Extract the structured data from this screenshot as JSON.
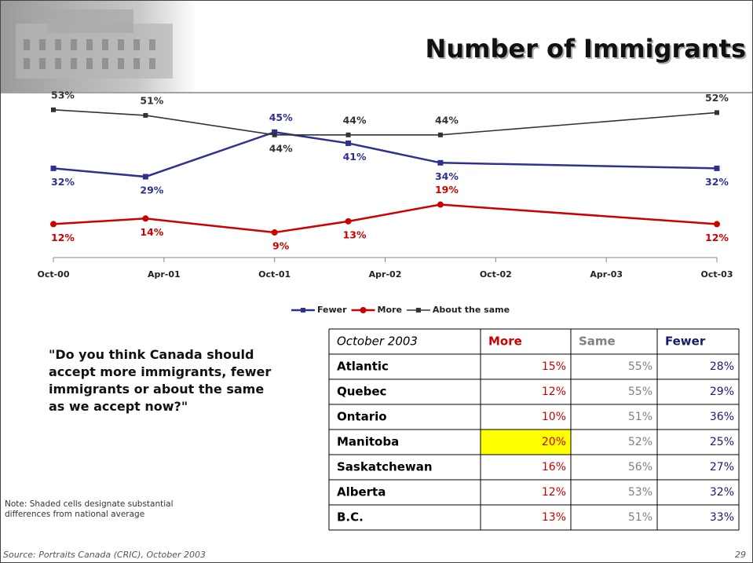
{
  "header": {
    "title": "Number of Immigrants"
  },
  "chart_data": {
    "type": "line",
    "x": [
      "2000-10",
      "2001-03",
      "2001-10",
      "2002-02",
      "2002-07",
      "2003-10"
    ],
    "xlim": [
      "2000-10",
      "2003-10"
    ],
    "xticks": [
      {
        "value": "2000-10",
        "label": "Oct-00"
      },
      {
        "value": "2001-04",
        "label": "Apr-01"
      },
      {
        "value": "2001-10",
        "label": "Oct-01"
      },
      {
        "value": "2002-04",
        "label": "Apr-02"
      },
      {
        "value": "2002-10",
        "label": "Oct-02"
      },
      {
        "value": "2003-04",
        "label": "Apr-03"
      },
      {
        "value": "2003-10",
        "label": "Oct-03"
      }
    ],
    "ylim": [
      0,
      60
    ],
    "legend": "bottom",
    "series": [
      {
        "name": "Fewer",
        "color": "#2e3192",
        "marker": "square",
        "values": [
          32,
          29,
          45,
          41,
          34,
          32
        ],
        "value_labels": [
          "32%",
          "29%",
          "45%",
          "41%",
          "34%",
          "32%"
        ]
      },
      {
        "name": "More",
        "color": "#cc0000",
        "marker": "circle",
        "values": [
          12,
          14,
          9,
          13,
          19,
          12
        ],
        "value_labels": [
          "12%",
          "14%",
          "9%",
          "13%",
          "19%",
          "12%"
        ]
      },
      {
        "name": "About the same",
        "color": "#333333",
        "marker": "square",
        "values": [
          53,
          51,
          44,
          44,
          44,
          52
        ],
        "value_labels": [
          "53%",
          "51%",
          "44%",
          "44%",
          "44%",
          "52%"
        ]
      }
    ]
  },
  "question": "\"Do you think Canada should accept more immigrants, fewer immigrants or about the same as we accept now?\"",
  "note": "Note:  Shaded cells designate substantial differences from national average",
  "table": {
    "header": [
      "October 2003",
      "More",
      "Same",
      "Fewer"
    ],
    "rows": [
      [
        "Atlantic",
        "15%",
        "55%",
        "28%"
      ],
      [
        "Quebec",
        "12%",
        "55%",
        "29%"
      ],
      [
        "Ontario",
        "10%",
        "51%",
        "36%"
      ],
      [
        "Manitoba",
        "20%",
        "52%",
        "25%"
      ],
      [
        "Saskatchewan",
        "16%",
        "56%",
        "27%"
      ],
      [
        "Alberta",
        "12%",
        "53%",
        "32%"
      ],
      [
        "B.C.",
        "13%",
        "51%",
        "33%"
      ]
    ],
    "colors": [
      "#000000",
      "#cc0000",
      "#808080",
      "#1a1a6e"
    ],
    "shaded_cells": [
      [
        3,
        1
      ]
    ],
    "shade_color": "#ffff00"
  },
  "footer": {
    "source": "Source: Portraits Canada (CRIC), October 2003",
    "page": "29"
  }
}
